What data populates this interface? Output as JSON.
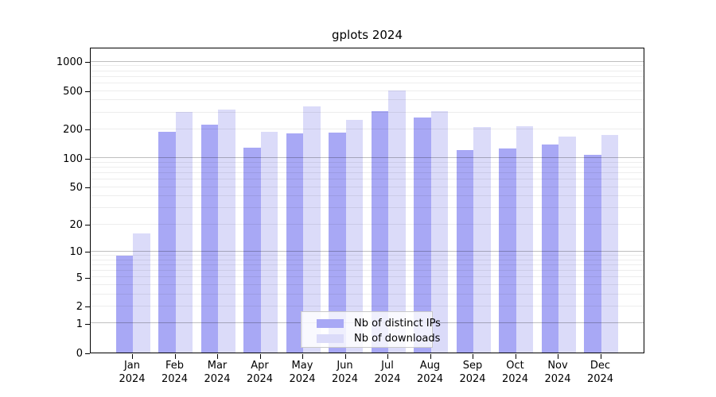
{
  "title": "gplots 2024",
  "chart_data": {
    "type": "bar",
    "title": "gplots 2024",
    "yscale": "log1p",
    "grid": true,
    "legend_position": "bottom-center-inside",
    "categories": [
      "Jan",
      "Feb",
      "Mar",
      "Apr",
      "May",
      "Jun",
      "Jul",
      "Aug",
      "Sep",
      "Oct",
      "Nov",
      "Dec"
    ],
    "x_year_label": "2024",
    "yticks": [
      0,
      1,
      2,
      5,
      10,
      20,
      50,
      100,
      200,
      500,
      1000
    ],
    "ylim": [
      0,
      1400
    ],
    "series": [
      {
        "name": "Nb of distinct IPs",
        "color": "#a8a8f5",
        "values": [
          9,
          190,
          222,
          130,
          182,
          186,
          310,
          265,
          122,
          127,
          140,
          108
        ]
      },
      {
        "name": "Nb of downloads",
        "color": "#dbdbf9",
        "values": [
          16,
          305,
          322,
          190,
          347,
          250,
          510,
          312,
          212,
          216,
          170,
          175
        ]
      }
    ]
  }
}
